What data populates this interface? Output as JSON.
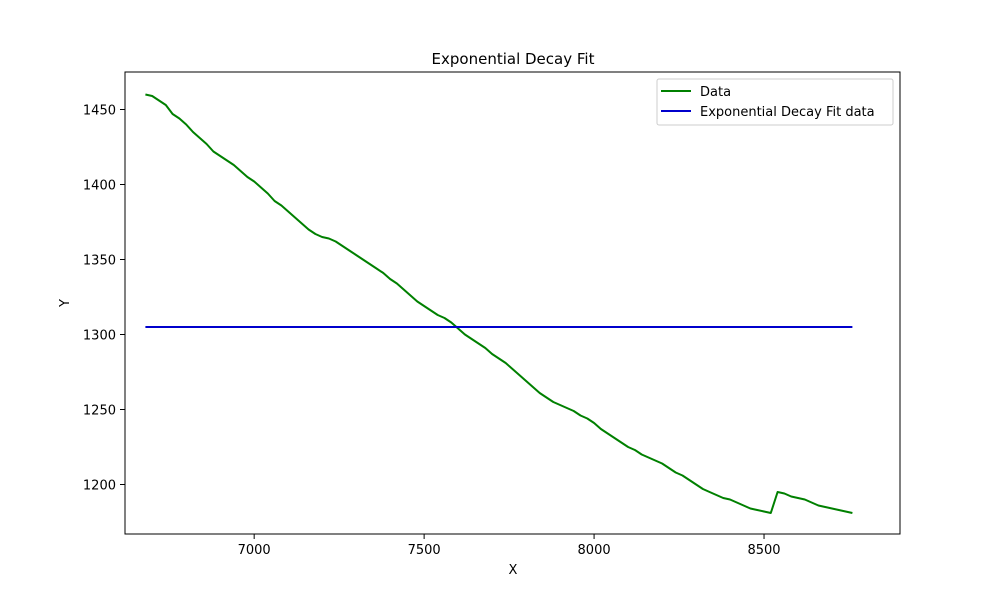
{
  "chart_data": {
    "type": "line",
    "title": "Exponential Decay Fit",
    "xlabel": "X",
    "ylabel": "Y",
    "xlim": [
      6620,
      8900
    ],
    "ylim": [
      1167,
      1475
    ],
    "xticks": [
      7000,
      7500,
      8000,
      8500
    ],
    "yticks": [
      1200,
      1250,
      1300,
      1350,
      1400,
      1450
    ],
    "grid": false,
    "legend_position": "top-right",
    "series": [
      {
        "name": "Data",
        "color": "#008000",
        "x": [
          6680,
          6700,
          6720,
          6740,
          6760,
          6780,
          6800,
          6820,
          6840,
          6860,
          6880,
          6900,
          6920,
          6940,
          6960,
          6980,
          7000,
          7020,
          7040,
          7060,
          7080,
          7100,
          7120,
          7140,
          7160,
          7180,
          7200,
          7220,
          7240,
          7260,
          7280,
          7300,
          7320,
          7340,
          7360,
          7380,
          7400,
          7420,
          7440,
          7460,
          7480,
          7500,
          7520,
          7540,
          7560,
          7580,
          7600,
          7620,
          7640,
          7660,
          7680,
          7700,
          7720,
          7740,
          7760,
          7780,
          7800,
          7820,
          7840,
          7860,
          7880,
          7900,
          7920,
          7940,
          7960,
          7980,
          8000,
          8020,
          8040,
          8060,
          8080,
          8100,
          8120,
          8140,
          8160,
          8180,
          8200,
          8220,
          8240,
          8260,
          8280,
          8300,
          8320,
          8340,
          8360,
          8380,
          8400,
          8420,
          8440,
          8460,
          8480,
          8500,
          8520,
          8540,
          8560,
          8580,
          8600,
          8620,
          8640,
          8660,
          8680,
          8700,
          8720,
          8740,
          8760
        ],
        "y": [
          1460,
          1459,
          1456,
          1453,
          1447,
          1444,
          1440,
          1435,
          1431,
          1427,
          1422,
          1419,
          1416,
          1413,
          1409,
          1405,
          1402,
          1398,
          1394,
          1389,
          1386,
          1382,
          1378,
          1374,
          1370,
          1367,
          1365,
          1364,
          1362,
          1359,
          1356,
          1353,
          1350,
          1347,
          1344,
          1341,
          1337,
          1334,
          1330,
          1326,
          1322,
          1319,
          1316,
          1313,
          1311,
          1308,
          1304,
          1300,
          1297,
          1294,
          1291,
          1287,
          1284,
          1281,
          1277,
          1273,
          1269,
          1265,
          1261,
          1258,
          1255,
          1253,
          1251,
          1249,
          1246,
          1244,
          1241,
          1237,
          1234,
          1231,
          1228,
          1225,
          1223,
          1220,
          1218,
          1216,
          1214,
          1211,
          1208,
          1206,
          1203,
          1200,
          1197,
          1195,
          1193,
          1191,
          1190,
          1188,
          1186,
          1184,
          1183,
          1182,
          1181,
          1195,
          1194,
          1192,
          1191,
          1190,
          1188,
          1186,
          1185,
          1184,
          1183,
          1182,
          1181
        ]
      },
      {
        "name": "Exponential Decay Fit data",
        "color": "#0000cc",
        "x": [
          6680,
          8760
        ],
        "y": [
          1305,
          1305
        ]
      }
    ]
  }
}
